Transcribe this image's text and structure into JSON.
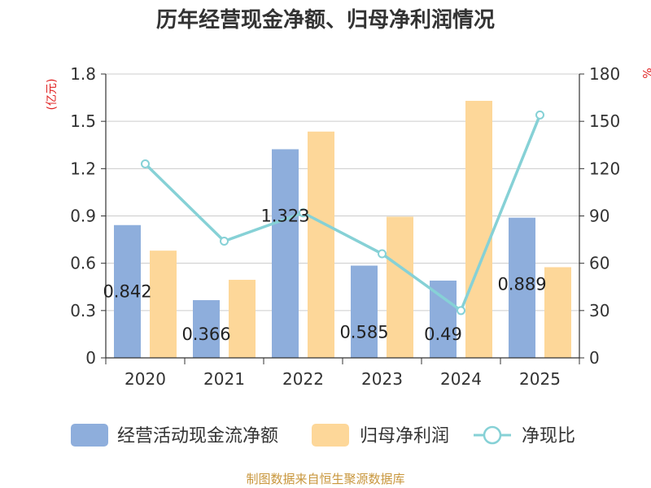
{
  "chart_data": {
    "type": "bar",
    "title": "历年经营现金净额、归母净利润情况",
    "categories": [
      "2020",
      "2021",
      "2022",
      "2023",
      "2024",
      "2025"
    ],
    "left_axis": {
      "unit": "(亿元)",
      "ylim": [
        0,
        1.8
      ],
      "ticks": [
        "0",
        "0.3",
        "0.6",
        "0.9",
        "1.2",
        "1.5",
        "1.8"
      ]
    },
    "right_axis": {
      "unit": "%",
      "ylim": [
        0,
        180
      ],
      "ticks": [
        "0",
        "30",
        "60",
        "90",
        "120",
        "150",
        "180"
      ]
    },
    "series": [
      {
        "name": "经营活动现金流净额",
        "type": "bar",
        "axis": "left",
        "color": "#8eaedc",
        "values": [
          0.842,
          0.366,
          1.323,
          0.585,
          0.49,
          0.889
        ],
        "labels": [
          "0.842",
          "0.366",
          "1.323",
          "0.585",
          "0.49",
          "0.889"
        ]
      },
      {
        "name": "归母净利润",
        "type": "bar",
        "axis": "left",
        "color": "#fdd799",
        "values": [
          0.68,
          0.495,
          1.435,
          0.895,
          1.63,
          0.575
        ]
      },
      {
        "name": "净现比",
        "type": "line",
        "axis": "right",
        "color": "#86d1d6",
        "values": [
          123,
          74,
          92,
          66,
          30,
          154
        ]
      }
    ],
    "grid": true,
    "legend_position": "bottom",
    "source": "制图数据来自恒生聚源数据库"
  }
}
